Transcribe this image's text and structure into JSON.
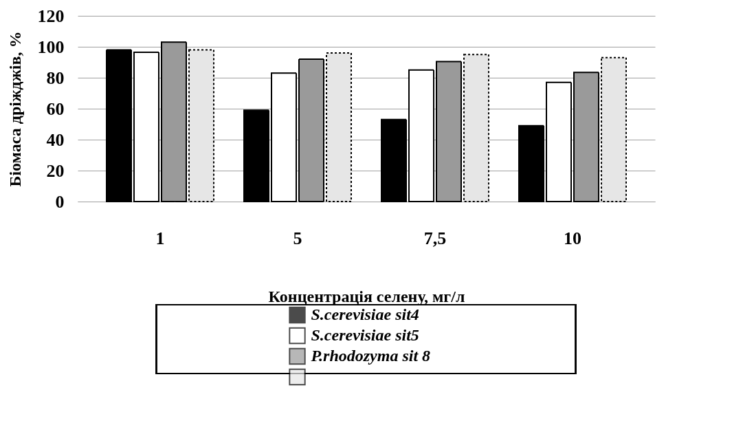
{
  "chart_data": {
    "type": "bar",
    "ylabel": "Біомаса дріжджів, %",
    "xlabel": "Концентрація селену, мг/л",
    "categories": [
      "1",
      "5",
      "7,5",
      "10"
    ],
    "series": [
      {
        "name": "S.cerevisiae sit4",
        "color": "#000000",
        "values": [
          98,
          59,
          53,
          49
        ]
      },
      {
        "name": "S.cerevisiae sit5",
        "color": "#ffffff",
        "values": [
          96.5,
          83,
          85,
          77
        ]
      },
      {
        "name": "P.rhodozyma sit 8",
        "color": "#9a9a9a",
        "values": [
          103,
          92,
          90.5,
          83.5
        ]
      },
      {
        "color": "#e6e6e6",
        "line_style": "dotted",
        "values": [
          98,
          96,
          95,
          93
        ]
      }
    ],
    "ylim": [
      0,
      120
    ],
    "yticks": [
      0,
      20,
      40,
      60,
      80,
      100,
      120
    ],
    "grid": "y",
    "legend": "bottom"
  }
}
